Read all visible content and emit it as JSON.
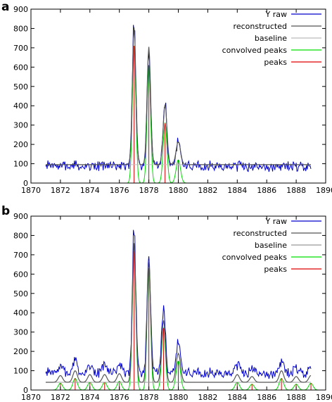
{
  "chart_data": [
    {
      "panel_label": "a",
      "type": "line",
      "xlim": [
        1870,
        1890
      ],
      "ylim": [
        0,
        900
      ],
      "x_ticks": [
        1870,
        1872,
        1874,
        1876,
        1878,
        1880,
        1882,
        1884,
        1886,
        1888,
        1890
      ],
      "y_ticks": [
        0,
        100,
        200,
        300,
        400,
        500,
        600,
        700,
        800,
        900
      ],
      "grid": false,
      "legend_position": "top-right",
      "x_range": [
        1871,
        1889
      ],
      "noise": {
        "base": 88,
        "amplitude": 20,
        "seed": 7,
        "step": 0.05
      },
      "baseline": {
        "value": 95
      },
      "peaks": [
        {
          "x": 1877.0,
          "height": 710,
          "sigma": 0.12
        },
        {
          "x": 1878.0,
          "height": 610,
          "sigma": 0.12
        },
        {
          "x": 1879.1,
          "height": 310,
          "sigma": 0.13
        },
        {
          "x": 1880.0,
          "height": 120,
          "sigma": 0.15
        }
      ],
      "series": [
        {
          "name": "Y raw",
          "color": "#0000cc"
        },
        {
          "name": "reconstructed",
          "color": "#555555"
        },
        {
          "name": "baseline",
          "color": "#bbbbbb"
        },
        {
          "name": "convolved peaks",
          "color": "#00dd00"
        },
        {
          "name": "peaks",
          "color": "#dd0000"
        }
      ]
    },
    {
      "panel_label": "b",
      "type": "line",
      "xlim": [
        1870,
        1890
      ],
      "ylim": [
        0,
        900
      ],
      "x_ticks": [
        1870,
        1872,
        1874,
        1876,
        1878,
        1880,
        1882,
        1884,
        1886,
        1888,
        1890
      ],
      "y_ticks": [
        0,
        100,
        200,
        300,
        400,
        500,
        600,
        700,
        800,
        900
      ],
      "grid": false,
      "legend_position": "top-right",
      "x_range": [
        1871,
        1889
      ],
      "noise": {
        "base": 88,
        "amplitude": 20,
        "seed": 7,
        "step": 0.05
      },
      "baseline": {
        "value": 40
      },
      "peaks": [
        {
          "x": 1872.0,
          "height": 35,
          "sigma": 0.15
        },
        {
          "x": 1873.0,
          "height": 60,
          "sigma": 0.15
        },
        {
          "x": 1874.0,
          "height": 40,
          "sigma": 0.15
        },
        {
          "x": 1875.0,
          "height": 40,
          "sigma": 0.15
        },
        {
          "x": 1876.0,
          "height": 45,
          "sigma": 0.15
        },
        {
          "x": 1877.0,
          "height": 720,
          "sigma": 0.12
        },
        {
          "x": 1878.0,
          "height": 630,
          "sigma": 0.12
        },
        {
          "x": 1879.0,
          "height": 320,
          "sigma": 0.13
        },
        {
          "x": 1880.0,
          "height": 150,
          "sigma": 0.15
        },
        {
          "x": 1884.0,
          "height": 40,
          "sigma": 0.15
        },
        {
          "x": 1885.0,
          "height": 30,
          "sigma": 0.15
        },
        {
          "x": 1887.0,
          "height": 60,
          "sigma": 0.15
        },
        {
          "x": 1888.0,
          "height": 30,
          "sigma": 0.15
        },
        {
          "x": 1889.0,
          "height": 35,
          "sigma": 0.15
        }
      ],
      "series": [
        {
          "name": "Y raw",
          "color": "#0000cc"
        },
        {
          "name": "reconstructed",
          "color": "#555555"
        },
        {
          "name": "baseline",
          "color": "#999999"
        },
        {
          "name": "convolved peaks",
          "color": "#00dd00"
        },
        {
          "name": "peaks",
          "color": "#dd0000"
        }
      ]
    }
  ]
}
